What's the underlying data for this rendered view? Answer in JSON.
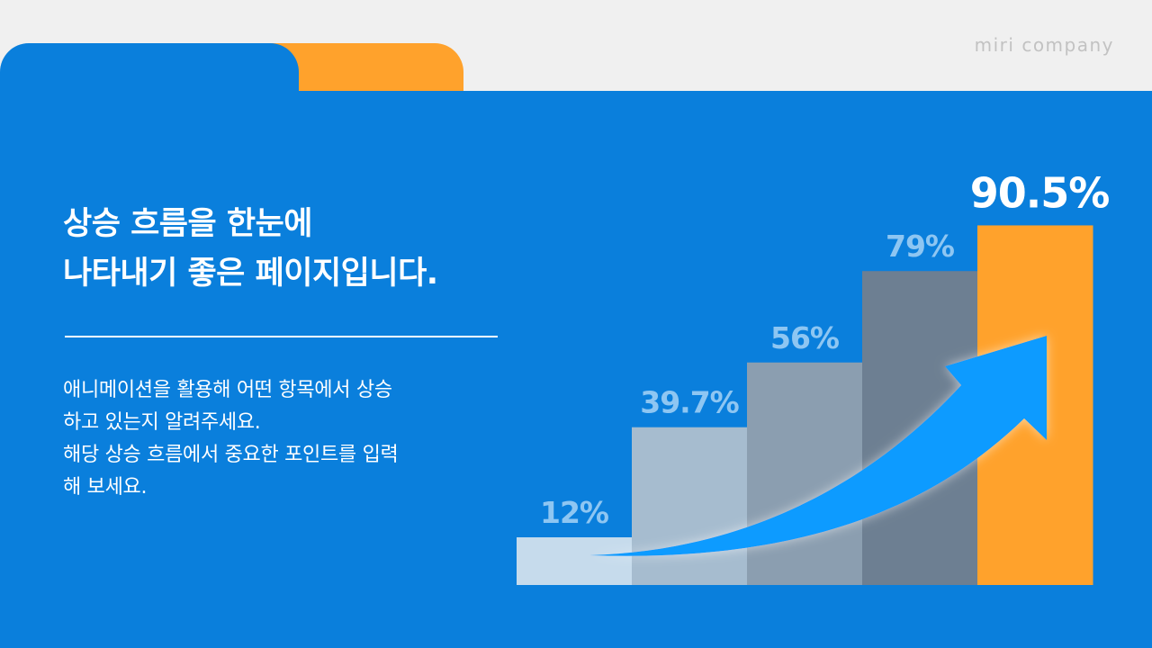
{
  "brand": "miri company",
  "title": {
    "line1": "상승 흐름을 한눈에",
    "line2": "나타내기 좋은 페이지입니다."
  },
  "body": {
    "line1": "애니메이션을 활용해 어떤 항목에서 상승",
    "line2": "하고 있는지 알려주세요.",
    "line3": "해당 상승 흐름에서 중요한 포인트를 입력",
    "line4": "해 보세요."
  },
  "colors": {
    "panel": "#0a7fdc",
    "accent": "#ffa22c",
    "arrow": "#0f9bff",
    "background": "#f0f0f0"
  },
  "chart_data": {
    "type": "bar",
    "values": [
      12,
      39.7,
      56,
      79,
      90.5
    ],
    "labels": [
      "12%",
      "39.7%",
      "56%",
      "79%",
      "90.5%"
    ],
    "ylim": [
      0,
      100
    ],
    "highlight_index": 4,
    "bar_colors": [
      "#c6dbec",
      "#a6bccf",
      "#8b9eb0",
      "#6d7f92",
      "#ffa22c"
    ],
    "label_colors": [
      "#8ec6f2",
      "#8ec6f2",
      "#8ec6f2",
      "#8ec6f2",
      "#ffffff"
    ],
    "grid": false,
    "legend": "none",
    "annotation": "upward-trend-arrow"
  }
}
